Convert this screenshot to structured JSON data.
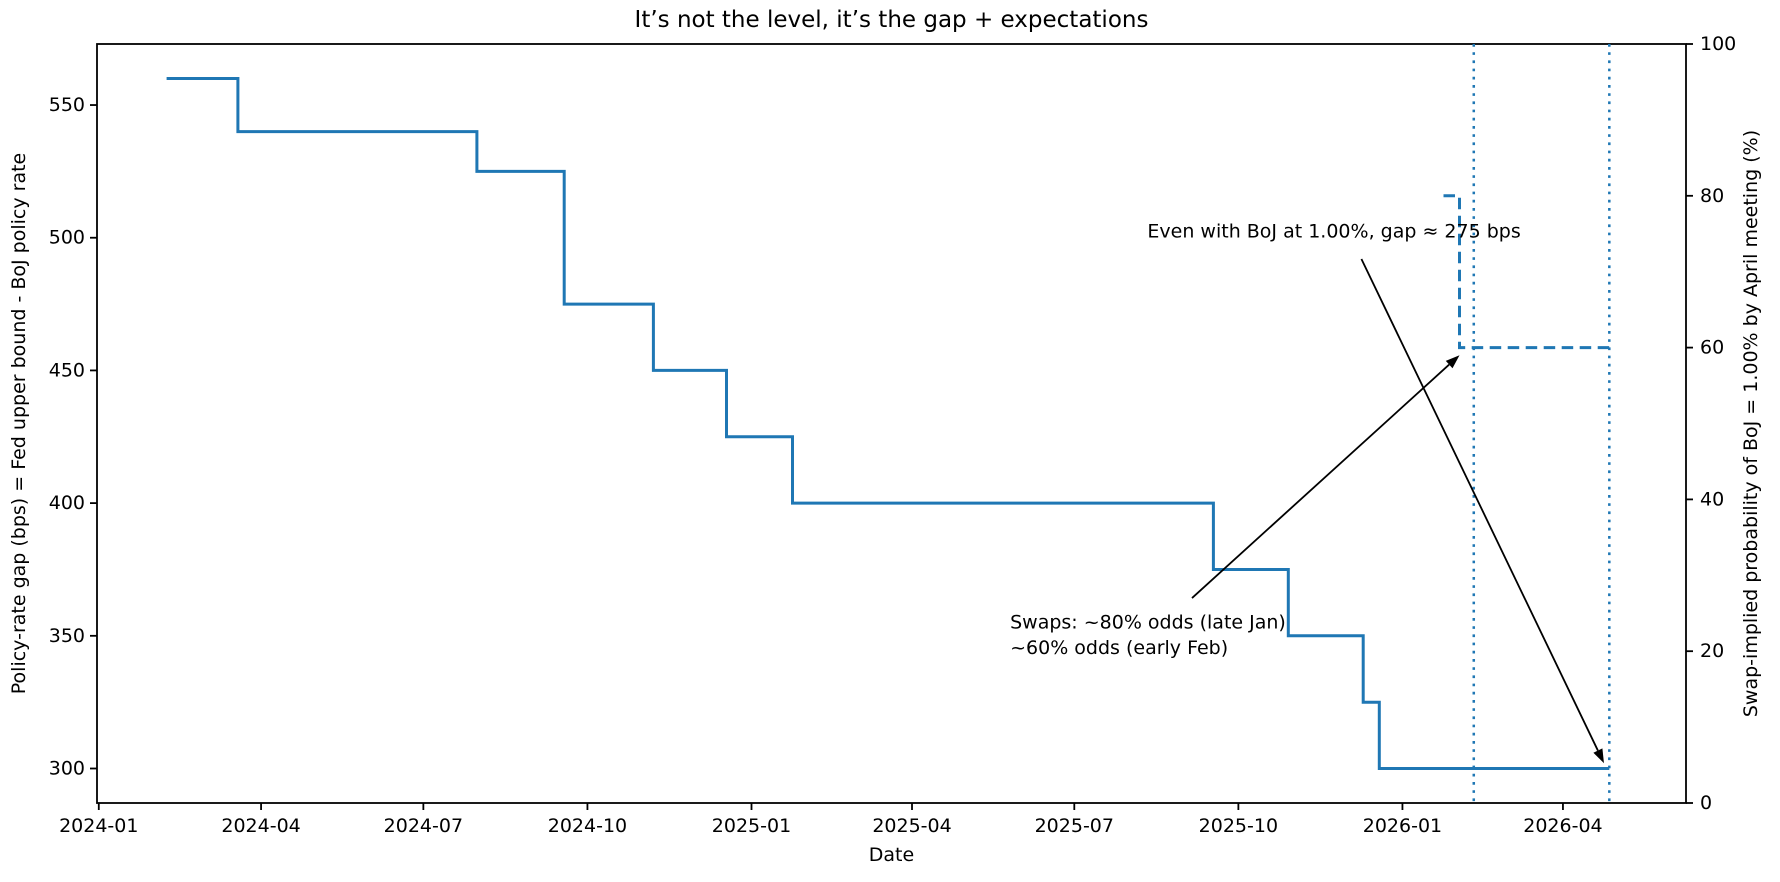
{
  "chart_data": {
    "type": "line",
    "title": "It’s not the level, it’s the gap + expectations",
    "xlabel": "Date",
    "ylabel_left": "Policy-rate gap (bps) = Fed upper bound - BoJ policy rate",
    "ylabel_right": "Swap-implied probability of BoJ = 1.00% by April meeting (%)",
    "x_tick_labels": [
      "2024-01",
      "2024-04",
      "2024-07",
      "2024-10",
      "2025-01",
      "2025-04",
      "2025-07",
      "2025-10",
      "2026-01",
      "2026-04"
    ],
    "y_ticks_left": [
      300,
      350,
      400,
      450,
      500,
      550
    ],
    "y_ticks_right": [
      0,
      20,
      40,
      60,
      80,
      100
    ],
    "xlim": [
      "2023-12-31",
      "2026-06-09"
    ],
    "ylim_left": [
      287,
      573
    ],
    "ylim_right": [
      0,
      100
    ],
    "grid": false,
    "legend_position": "none",
    "accent_color": "#1f77b4",
    "series": [
      {
        "name": "policy-rate-gap-bps",
        "axis": "left",
        "line_style": "solid",
        "step": "post",
        "color": "#1f77b4",
        "points": [
          [
            "2024-02-08",
            560
          ],
          [
            "2024-03-19",
            540
          ],
          [
            "2024-07-31",
            525
          ],
          [
            "2024-09-18",
            475
          ],
          [
            "2024-11-07",
            450
          ],
          [
            "2024-12-18",
            425
          ],
          [
            "2025-01-24",
            400
          ],
          [
            "2025-09-17",
            375
          ],
          [
            "2025-10-29",
            350
          ],
          [
            "2025-12-10",
            325
          ],
          [
            "2025-12-19",
            300
          ],
          [
            "2026-04-27",
            300
          ]
        ]
      },
      {
        "name": "swap-implied-probability-pct",
        "axis": "right",
        "line_style": "dashed",
        "step": "post",
        "color": "#1f77b4",
        "points": [
          [
            "2026-01-24",
            80
          ],
          [
            "2026-02-02",
            60
          ],
          [
            "2026-04-27",
            60
          ]
        ]
      }
    ],
    "vlines": [
      {
        "date": "2026-02-10",
        "style": "dotted",
        "color": "#1f77b4"
      },
      {
        "date": "2026-04-27",
        "style": "dotted",
        "color": "#1f77b4"
      }
    ],
    "annotations": [
      {
        "id": "gap-275",
        "text": "Even with BoJ at 1.00%, gap ≈ 275 bps",
        "axis": "left",
        "text_pos": [
          "2025-08-11",
          500
        ],
        "arrow_start": [
          "2025-12-09",
          492
        ],
        "arrow_end": [
          "2026-04-24",
          302
        ]
      },
      {
        "id": "swaps-odds",
        "lines": [
          "Swaps: ~80% odds (late Jan)",
          "~60% odds (early Feb)"
        ],
        "axis": "right",
        "text_pos": [
          "2025-05-26",
          23
        ],
        "arrow_start": [
          "2025-09-05",
          27
        ],
        "arrow_end": [
          "2026-02-02",
          59
        ]
      }
    ]
  }
}
